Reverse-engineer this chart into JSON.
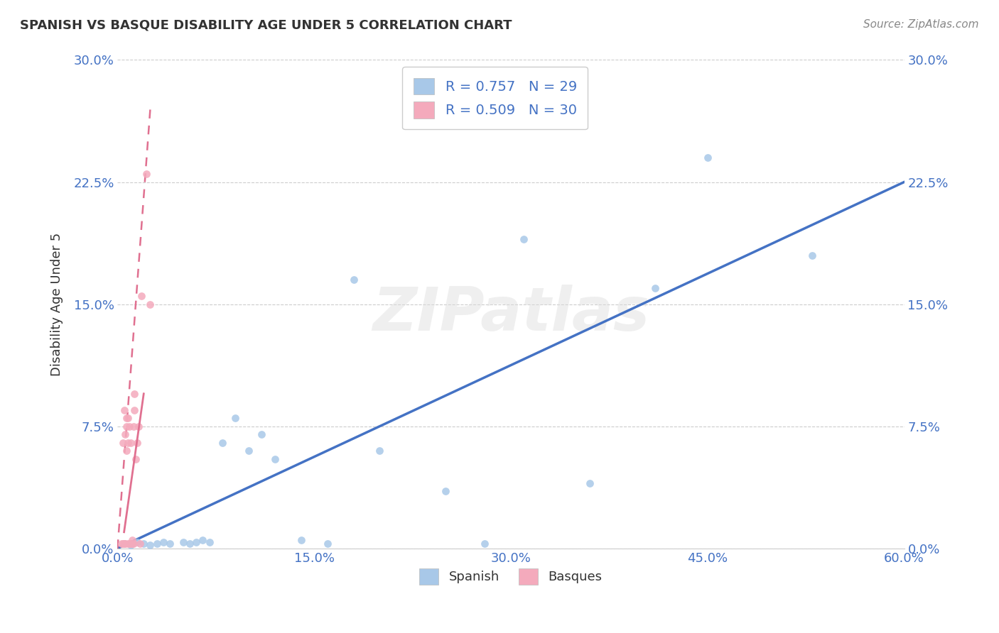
{
  "title": "SPANISH VS BASQUE DISABILITY AGE UNDER 5 CORRELATION CHART",
  "source": "Source: ZipAtlas.com",
  "ylabel": "Disability Age Under 5",
  "xlim": [
    0.0,
    0.6
  ],
  "ylim": [
    0.0,
    0.3
  ],
  "xticks": [
    0.0,
    0.15,
    0.3,
    0.45,
    0.6
  ],
  "xtick_labels": [
    "0.0%",
    "15.0%",
    "30.0%",
    "45.0%",
    "60.0%"
  ],
  "yticks": [
    0.0,
    0.075,
    0.15,
    0.225,
    0.3
  ],
  "ytick_labels": [
    "0.0%",
    "7.5%",
    "15.0%",
    "22.5%",
    "30.0%"
  ],
  "blue_R": 0.757,
  "blue_N": 29,
  "pink_R": 0.509,
  "pink_N": 30,
  "blue_color": "#A8C8E8",
  "pink_color": "#F4AABC",
  "blue_line_color": "#4472C4",
  "pink_line_color": "#E07090",
  "title_color": "#333333",
  "axis_label_color": "#333333",
  "tick_color": "#4472C4",
  "source_color": "#888888",
  "legend_R_color": "#4472C4",
  "grid_color": "#CCCCCC",
  "watermark": "ZIPatlas",
  "blue_x": [
    0.005,
    0.01,
    0.015,
    0.02,
    0.025,
    0.03,
    0.035,
    0.04,
    0.05,
    0.055,
    0.06,
    0.065,
    0.07,
    0.08,
    0.09,
    0.1,
    0.11,
    0.12,
    0.14,
    0.16,
    0.18,
    0.2,
    0.25,
    0.28,
    0.31,
    0.36,
    0.41,
    0.45,
    0.53
  ],
  "blue_y": [
    0.003,
    0.002,
    0.004,
    0.003,
    0.002,
    0.003,
    0.004,
    0.003,
    0.004,
    0.003,
    0.004,
    0.005,
    0.004,
    0.065,
    0.08,
    0.06,
    0.07,
    0.055,
    0.005,
    0.003,
    0.165,
    0.06,
    0.035,
    0.003,
    0.19,
    0.04,
    0.16,
    0.24,
    0.18
  ],
  "pink_x": [
    0.003,
    0.004,
    0.004,
    0.005,
    0.005,
    0.006,
    0.006,
    0.007,
    0.007,
    0.007,
    0.008,
    0.008,
    0.008,
    0.009,
    0.009,
    0.01,
    0.01,
    0.011,
    0.011,
    0.012,
    0.012,
    0.013,
    0.013,
    0.014,
    0.015,
    0.016,
    0.017,
    0.018,
    0.022,
    0.025
  ],
  "pink_y": [
    0.003,
    0.003,
    0.065,
    0.003,
    0.085,
    0.003,
    0.07,
    0.06,
    0.075,
    0.08,
    0.003,
    0.065,
    0.08,
    0.003,
    0.075,
    0.003,
    0.065,
    0.003,
    0.005,
    0.003,
    0.075,
    0.085,
    0.095,
    0.055,
    0.065,
    0.075,
    0.003,
    0.155,
    0.23,
    0.15
  ]
}
